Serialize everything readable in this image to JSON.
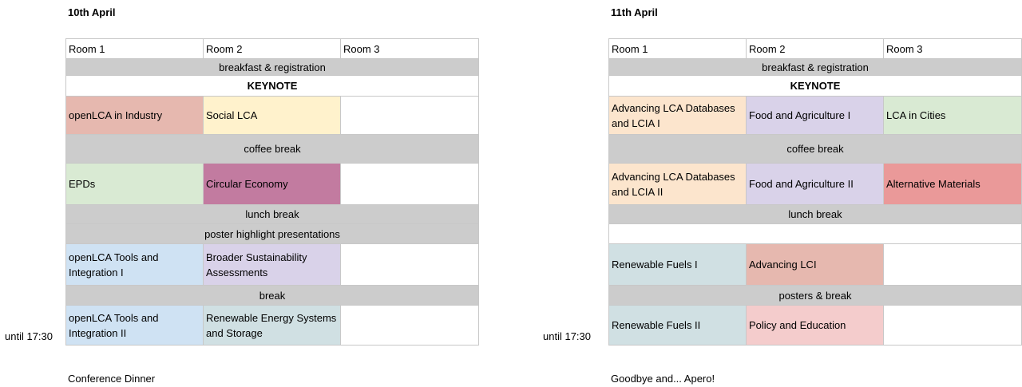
{
  "days": [
    {
      "date": "10th April",
      "rooms": [
        "Room 1",
        "Room 2",
        "Room 3"
      ],
      "breakfast": "breakfast & registration",
      "keynote": "KEYNOTE",
      "session1": [
        {
          "label": "openLCA in Industry",
          "color": "#e6b8af"
        },
        {
          "label": "Social LCA",
          "color": "#fff2cc"
        },
        {
          "label": "",
          "color": "#ffffff"
        }
      ],
      "coffee": "coffee break",
      "session2": [
        {
          "label": "EPDs",
          "color": "#d9ead3"
        },
        {
          "label": "Circular Economy",
          "color": "#c27ba0"
        },
        {
          "label": "",
          "color": "#ffffff"
        }
      ],
      "lunch": "lunch break",
      "afterlunch": "poster highlight presentations",
      "session3": [
        {
          "label": "openLCA Tools and Integration I",
          "color": "#cfe2f3"
        },
        {
          "label": "Broader Sustainability Assessments",
          "color": "#d9d2e9"
        },
        {
          "label": "",
          "color": "#ffffff"
        }
      ],
      "break": "break",
      "session4": [
        {
          "label": "openLCA Tools and Integration II",
          "color": "#cfe2f3"
        },
        {
          "label": "Renewable Energy Systems and Storage",
          "color": "#d0e0e3"
        },
        {
          "label": "",
          "color": "#ffffff"
        }
      ],
      "until": "until 17:30",
      "evening": "Conference Dinner"
    },
    {
      "date": "11th April",
      "rooms": [
        "Room 1",
        "Room 2",
        "Room 3"
      ],
      "breakfast": "breakfast & registration",
      "keynote": "KEYNOTE",
      "session1": [
        {
          "label": "Advancing LCA Databases and LCIA I",
          "color": "#fce5cd"
        },
        {
          "label": "Food and Agriculture I",
          "color": "#d9d2e9"
        },
        {
          "label": "LCA in Cities",
          "color": "#d9ead3"
        }
      ],
      "coffee": "coffee break",
      "session2": [
        {
          "label": "Advancing LCA Databases and LCIA II",
          "color": "#fce5cd"
        },
        {
          "label": "Food and Agriculture II",
          "color": "#d9d2e9"
        },
        {
          "label": "Alternative Materials",
          "color": "#ea9999"
        }
      ],
      "lunch": "lunch break",
      "afterlunch": "",
      "session3": [
        {
          "label": "Renewable Fuels I",
          "color": "#d0e0e3"
        },
        {
          "label": "Advancing LCI",
          "color": "#e6b8af"
        },
        {
          "label": "",
          "color": "#ffffff"
        }
      ],
      "break": "posters & break",
      "session4": [
        {
          "label": "Renewable Fuels II",
          "color": "#d0e0e3"
        },
        {
          "label": "Policy and Education",
          "color": "#f4cccc"
        },
        {
          "label": "",
          "color": "#ffffff"
        }
      ],
      "until": "until 17:30",
      "evening": "Goodbye and... Apero!"
    }
  ]
}
